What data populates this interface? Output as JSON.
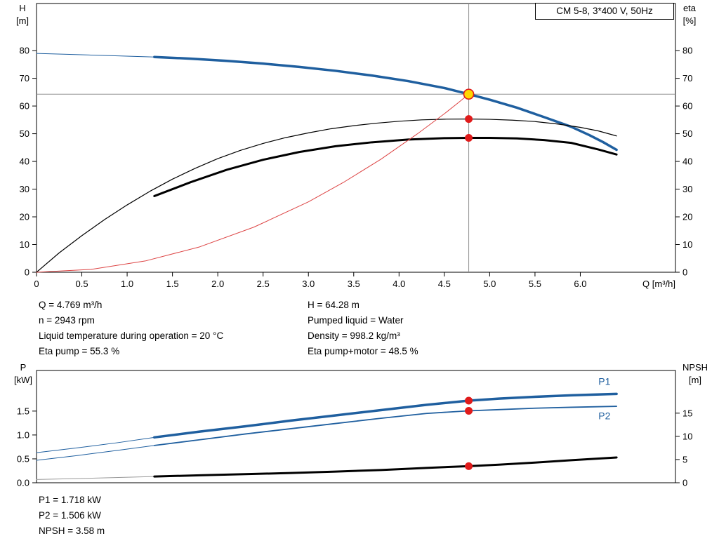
{
  "header": {
    "title_box": "CM 5-8, 3*400 V, 50Hz"
  },
  "colors": {
    "blue": "#1f5f9f",
    "black": "#000000",
    "red": "#e01b1b",
    "lightred": "#dd4444",
    "gray": "#909090",
    "lightgray": "#999999",
    "gold": "#ffd700"
  },
  "top_info": {
    "col1": [
      "Q = 4.769 m³/h",
      "n = 2943 rpm",
      "Liquid temperature during operation = 20 °C",
      "Eta pump = 55.3 %"
    ],
    "col2": [
      "H = 64.28 m",
      "Pumped liquid = Water",
      "Density = 998.2 kg/m³",
      "Eta pump+motor = 48.5 %"
    ]
  },
  "bottom_info": [
    "P1 = 1.718 kW",
    "P2 = 1.506 kW",
    "NPSH = 3.58 m"
  ],
  "chart_data": [
    {
      "type": "line",
      "title": "CM 5-8, 3*400 V, 50Hz",
      "xlabel": "Q [m³/h]",
      "ylabel_left": [
        "H",
        "[m]"
      ],
      "ylabel_right": [
        "eta",
        "[%]"
      ],
      "xlim": [
        0,
        7.05
      ],
      "ylim_left": [
        0,
        97
      ],
      "ylim_right": [
        0,
        97
      ],
      "xticks": {
        "values": [
          0,
          0.5,
          1,
          1.5,
          2,
          2.5,
          3,
          3.5,
          4,
          4.5,
          5,
          5.5,
          6
        ],
        "labels": [
          "0",
          "0.5",
          "1.0",
          "1.5",
          "2.0",
          "2.5",
          "3.0",
          "3.5",
          "4.0",
          "4.5",
          "5.0",
          "5.5",
          "6.0"
        ]
      },
      "yticks_left": {
        "values": [
          0,
          10,
          20,
          30,
          40,
          50,
          60,
          70,
          80
        ],
        "labels": [
          "0",
          "10",
          "20",
          "30",
          "40",
          "50",
          "60",
          "70",
          "80"
        ]
      },
      "yticks_right": {
        "values": [
          0,
          10,
          20,
          30,
          40,
          50,
          60,
          70,
          80
        ],
        "labels": [
          "0",
          "10",
          "20",
          "30",
          "40",
          "50",
          "60",
          "70",
          "80"
        ]
      },
      "crosshair": {
        "x": 4.769,
        "y": 64.28
      },
      "series": [
        {
          "name": "head-curve-thin-extension",
          "color": "blue",
          "width": 1,
          "axis": "left",
          "x": [
            0,
            0.3,
            0.6,
            0.9,
            1.3
          ],
          "y": [
            79,
            78.7,
            78.4,
            78.1,
            77.7
          ]
        },
        {
          "name": "head-curve",
          "color": "blue",
          "width": 3.5,
          "axis": "left",
          "x": [
            1.3,
            1.7,
            2.1,
            2.5,
            2.9,
            3.3,
            3.7,
            4.1,
            4.5,
            4.769,
            5,
            5.3,
            5.6,
            5.9,
            6.1,
            6.25,
            6.4
          ],
          "y": [
            77.7,
            77.1,
            76.3,
            75.3,
            74.1,
            72.7,
            71,
            69,
            66.5,
            64.28,
            62.3,
            59.4,
            56,
            52.5,
            49.5,
            47,
            44.2
          ]
        },
        {
          "name": "eta-pump-curve",
          "color": "black",
          "width": 1.2,
          "axis": "left",
          "x": [
            0,
            0.25,
            0.5,
            0.75,
            1,
            1.25,
            1.5,
            1.75,
            2,
            2.25,
            2.5,
            2.75,
            3,
            3.25,
            3.5,
            3.75,
            4,
            4.25,
            4.5,
            4.769,
            5,
            5.25,
            5.5,
            5.75,
            6,
            6.2,
            6.4
          ],
          "y": [
            0,
            7,
            13.2,
            19,
            24.3,
            29.2,
            33.6,
            37.5,
            41,
            44,
            46.5,
            48.6,
            50.3,
            51.8,
            52.9,
            53.8,
            54.5,
            55,
            55.25,
            55.3,
            55.2,
            54.9,
            54.4,
            53.5,
            52.3,
            51,
            49.2
          ]
        },
        {
          "name": "eta-pump-motor-curve",
          "color": "black",
          "width": 3,
          "axis": "left",
          "x": [
            1.3,
            1.7,
            2.1,
            2.5,
            2.9,
            3.3,
            3.7,
            4.1,
            4.5,
            4.769,
            5,
            5.3,
            5.6,
            5.9,
            6.2,
            6.4
          ],
          "y": [
            27.5,
            32.5,
            37,
            40.6,
            43.4,
            45.5,
            46.9,
            47.9,
            48.4,
            48.5,
            48.5,
            48.3,
            47.7,
            46.7,
            44.3,
            42.5
          ]
        },
        {
          "name": "system-curve",
          "color": "lightred",
          "width": 1,
          "axis": "left",
          "x": [
            0,
            0.6,
            1.2,
            1.8,
            2.4,
            3,
            3.4,
            3.8,
            4.2,
            4.5,
            4.65,
            4.769
          ],
          "y": [
            0,
            1.02,
            4.07,
            9.16,
            16.3,
            25.4,
            32.7,
            40.8,
            49.9,
            57.2,
            61.1,
            64.28
          ]
        }
      ],
      "markers": [
        {
          "x": 4.769,
          "y": 64.28,
          "style": "duty",
          "axis": "left"
        },
        {
          "x": 4.769,
          "y": 55.3,
          "style": "dot",
          "axis": "left"
        },
        {
          "x": 4.769,
          "y": 48.5,
          "style": "dot",
          "axis": "left"
        }
      ]
    },
    {
      "type": "line",
      "xlabel": "",
      "ylabel_left": [
        "P",
        "[kW]"
      ],
      "ylabel_right": [
        "NPSH",
        "[m]"
      ],
      "xlim": [
        0,
        7.05
      ],
      "ylim_left": [
        0,
        2.35
      ],
      "ylim_right": [
        0,
        24.2
      ],
      "yticks_left": {
        "values": [
          0,
          0.5,
          1,
          1.5
        ],
        "labels": [
          "0.0",
          "0.5",
          "1.0",
          "1.5"
        ]
      },
      "yticks_right": {
        "values": [
          0,
          5,
          10,
          15
        ],
        "labels": [
          "0",
          "5",
          "10",
          "15"
        ]
      },
      "series": [
        {
          "name": "p1-thin-extension",
          "color": "blue",
          "width": 1,
          "axis": "left",
          "x": [
            0,
            0.45,
            0.9,
            1.3
          ],
          "y": [
            0.63,
            0.73,
            0.84,
            0.95
          ]
        },
        {
          "name": "p1-curve",
          "color": "blue",
          "width": 3.5,
          "axis": "left",
          "x": [
            1.3,
            1.8,
            2.3,
            2.8,
            3.3,
            3.8,
            4.3,
            4.769,
            5.1,
            5.5,
            5.9,
            6.4
          ],
          "y": [
            0.95,
            1.07,
            1.18,
            1.3,
            1.41,
            1.52,
            1.63,
            1.718,
            1.76,
            1.8,
            1.83,
            1.86
          ]
        },
        {
          "name": "p2-thin-extension",
          "color": "blue",
          "width": 1,
          "axis": "left",
          "x": [
            0,
            0.45,
            0.9,
            1.3
          ],
          "y": [
            0.47,
            0.57,
            0.68,
            0.78
          ]
        },
        {
          "name": "p2-curve",
          "color": "blue",
          "width": 1.8,
          "axis": "left",
          "x": [
            1.3,
            1.8,
            2.3,
            2.8,
            3.3,
            3.8,
            4.3,
            4.769,
            5.1,
            5.5,
            5.9,
            6.4
          ],
          "y": [
            0.78,
            0.9,
            1.02,
            1.13,
            1.24,
            1.35,
            1.45,
            1.506,
            1.53,
            1.56,
            1.58,
            1.6
          ]
        },
        {
          "name": "npsh-thin-extension",
          "color": "lightgray",
          "width": 1,
          "axis": "right",
          "x": [
            0,
            0.65,
            1.3
          ],
          "y": [
            0.7,
            1.0,
            1.35
          ]
        },
        {
          "name": "npsh-curve",
          "color": "black",
          "width": 3,
          "axis": "right",
          "x": [
            1.3,
            1.8,
            2.3,
            2.8,
            3.3,
            3.8,
            4.3,
            4.769,
            5.1,
            5.5,
            5.9,
            6.4
          ],
          "y": [
            1.35,
            1.6,
            1.85,
            2.1,
            2.4,
            2.75,
            3.2,
            3.58,
            3.9,
            4.35,
            4.85,
            5.45
          ]
        }
      ],
      "markers": [
        {
          "x": 4.769,
          "y": 1.718,
          "style": "dot",
          "axis": "left"
        },
        {
          "x": 4.769,
          "y": 1.506,
          "style": "dot",
          "axis": "left"
        },
        {
          "x": 4.769,
          "y": 3.58,
          "style": "dot",
          "axis": "right"
        }
      ],
      "annotations": [
        {
          "text": "P1",
          "x": 6.2,
          "y": 2.05,
          "color": "blue"
        },
        {
          "text": "P2",
          "x": 6.2,
          "y": 1.33,
          "color": "blue"
        }
      ]
    }
  ]
}
